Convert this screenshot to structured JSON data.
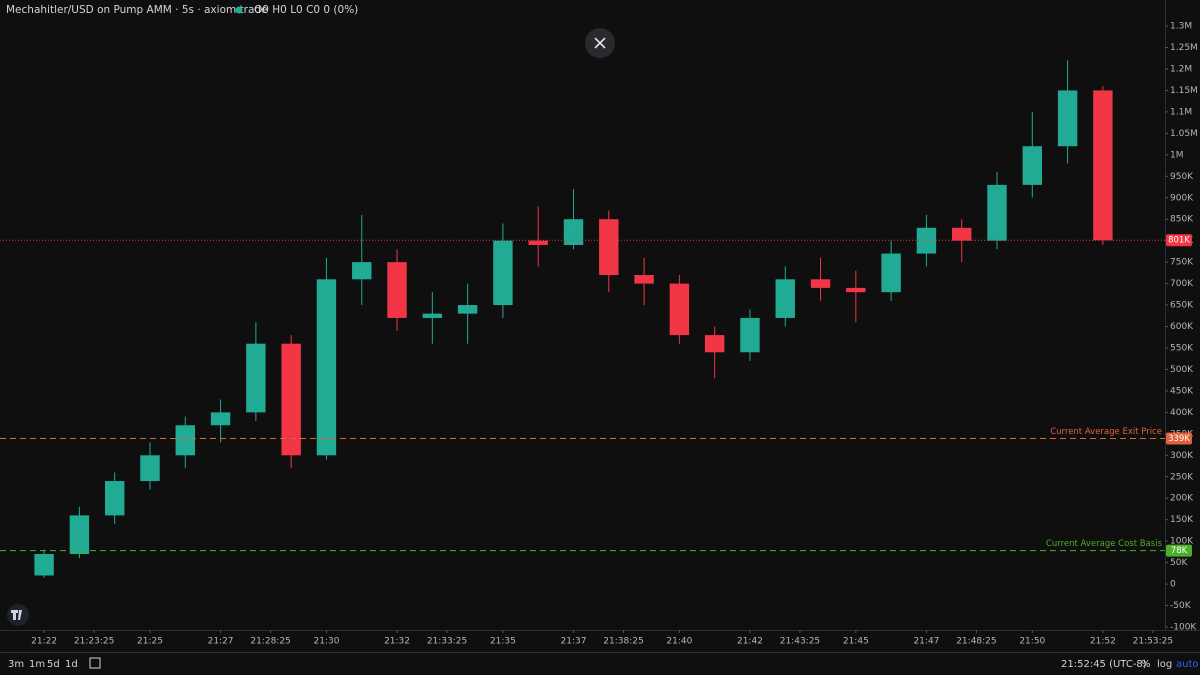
{
  "chart_data": {
    "type": "candlestick",
    "title": "Mechahitler/USD on Pump AMM · 5s · axiom.trade",
    "subtitle": "O0 H0 L0 C0 0 (0%)",
    "x": [
      22,
      23,
      24,
      25,
      26,
      27,
      28,
      29,
      30,
      31,
      32,
      33,
      34,
      35,
      36,
      37,
      38,
      39,
      40,
      41,
      42,
      43,
      44,
      45,
      46,
      47,
      48,
      49,
      50,
      51,
      52
    ],
    "open": [
      20000,
      70000,
      160000,
      240000,
      300000,
      370000,
      400000,
      560000,
      300000,
      710000,
      750000,
      620000,
      630000,
      650000,
      800000,
      790000,
      850000,
      720000,
      700000,
      580000,
      540000,
      620000,
      710000,
      690000,
      680000,
      770000,
      830000,
      800000,
      930000,
      1020000,
      1150000
    ],
    "high": [
      80000,
      180000,
      260000,
      330000,
      390000,
      430000,
      610000,
      580000,
      760000,
      860000,
      780000,
      680000,
      700000,
      840000,
      880000,
      920000,
      870000,
      760000,
      720000,
      600000,
      640000,
      740000,
      760000,
      730000,
      800000,
      860000,
      850000,
      960000,
      1100000,
      1220000,
      1160000
    ],
    "low": [
      15000,
      60000,
      140000,
      220000,
      270000,
      330000,
      380000,
      270000,
      290000,
      650000,
      590000,
      560000,
      560000,
      620000,
      740000,
      780000,
      680000,
      650000,
      560000,
      480000,
      520000,
      600000,
      660000,
      610000,
      660000,
      740000,
      750000,
      780000,
      900000,
      980000,
      790000
    ],
    "close": [
      70000,
      160000,
      240000,
      300000,
      370000,
      400000,
      560000,
      300000,
      710000,
      750000,
      620000,
      630000,
      650000,
      800000,
      790000,
      850000,
      720000,
      700000,
      580000,
      540000,
      620000,
      710000,
      690000,
      680000,
      770000,
      830000,
      800000,
      930000,
      1020000,
      1150000,
      801000
    ],
    "up_color": "#22ab94",
    "down_color": "#f23645",
    "xlim": [
      20.75,
      53.76
    ],
    "xticks": [
      {
        "value": 22,
        "label": "21:22"
      },
      {
        "value": 23.4167,
        "label": "21:23:25"
      },
      {
        "value": 25,
        "label": "21:25"
      },
      {
        "value": 27,
        "label": "21:27"
      },
      {
        "value": 28.4167,
        "label": "21:28:25"
      },
      {
        "value": 30,
        "label": "21:30"
      },
      {
        "value": 32,
        "label": "21:32"
      },
      {
        "value": 33.4167,
        "label": "21:33:25"
      },
      {
        "value": 35,
        "label": "21:35"
      },
      {
        "value": 37,
        "label": "21:37"
      },
      {
        "value": 38.4167,
        "label": "21:38:25"
      },
      {
        "value": 40,
        "label": "21:40"
      },
      {
        "value": 42,
        "label": "21:42"
      },
      {
        "value": 43.4167,
        "label": "21:43:25"
      },
      {
        "value": 45,
        "label": "21:45"
      },
      {
        "value": 47,
        "label": "21:47"
      },
      {
        "value": 48.4167,
        "label": "21:48:25"
      },
      {
        "value": 50,
        "label": "21:50"
      },
      {
        "value": 52,
        "label": "21:52"
      },
      {
        "value": 53.4167,
        "label": "21:53:25"
      }
    ],
    "ylim": [
      -107000,
      1360700
    ],
    "yticks": [
      {
        "value": -100000,
        "label": "-100K"
      },
      {
        "value": -50000,
        "label": "-50K"
      },
      0,
      {
        "value": 50000,
        "label": "50K"
      },
      {
        "value": 100000,
        "label": "100K"
      },
      {
        "value": 150000,
        "label": "150K"
      },
      {
        "value": 200000,
        "label": "200K"
      },
      {
        "value": 250000,
        "label": "250K"
      },
      {
        "value": 300000,
        "label": "300K"
      },
      {
        "value": 350000,
        "label": "350K"
      },
      {
        "value": 400000,
        "label": "400K"
      },
      {
        "value": 450000,
        "label": "450K"
      },
      {
        "value": 500000,
        "label": "500K"
      },
      {
        "value": 550000,
        "label": "550K"
      },
      {
        "value": 600000,
        "label": "600K"
      },
      {
        "value": 650000,
        "label": "650K"
      },
      {
        "value": 700000,
        "label": "700K"
      },
      {
        "value": 750000,
        "label": "750K"
      },
      {
        "value": 800000,
        "label": "800K"
      },
      {
        "value": 850000,
        "label": "850K"
      },
      {
        "value": 900000,
        "label": "900K"
      },
      {
        "value": 950000,
        "label": "950K"
      },
      {
        "value": 1000000,
        "label": "1M"
      },
      {
        "value": 1050000,
        "label": "1.05M"
      },
      {
        "value": 1100000,
        "label": "1.1M"
      },
      {
        "value": 1150000,
        "label": "1.15M"
      },
      {
        "value": 1200000,
        "label": "1.2M"
      },
      {
        "value": 1250000,
        "label": "1.25M"
      },
      {
        "value": 1300000,
        "label": "1.3M"
      }
    ],
    "grid": false,
    "reference_lines": [
      {
        "value": 801000,
        "value_label": "801K",
        "color": "#f23645",
        "style": "dotted"
      },
      {
        "value": 339000,
        "value_label": "339K",
        "label": "Current Average Exit Price",
        "color": "#e0613a",
        "style": "dashed"
      },
      {
        "value": 78000,
        "value_label": "78K",
        "label": "Current Average Cost Basis",
        "color": "#4caf2a",
        "style": "dashed"
      }
    ]
  },
  "ui": {
    "timeframes": [
      "3m",
      "1m",
      "5d",
      "1d"
    ],
    "clock": "21:52:45 (UTC-8)",
    "options": [
      "%",
      "log",
      "auto"
    ]
  }
}
